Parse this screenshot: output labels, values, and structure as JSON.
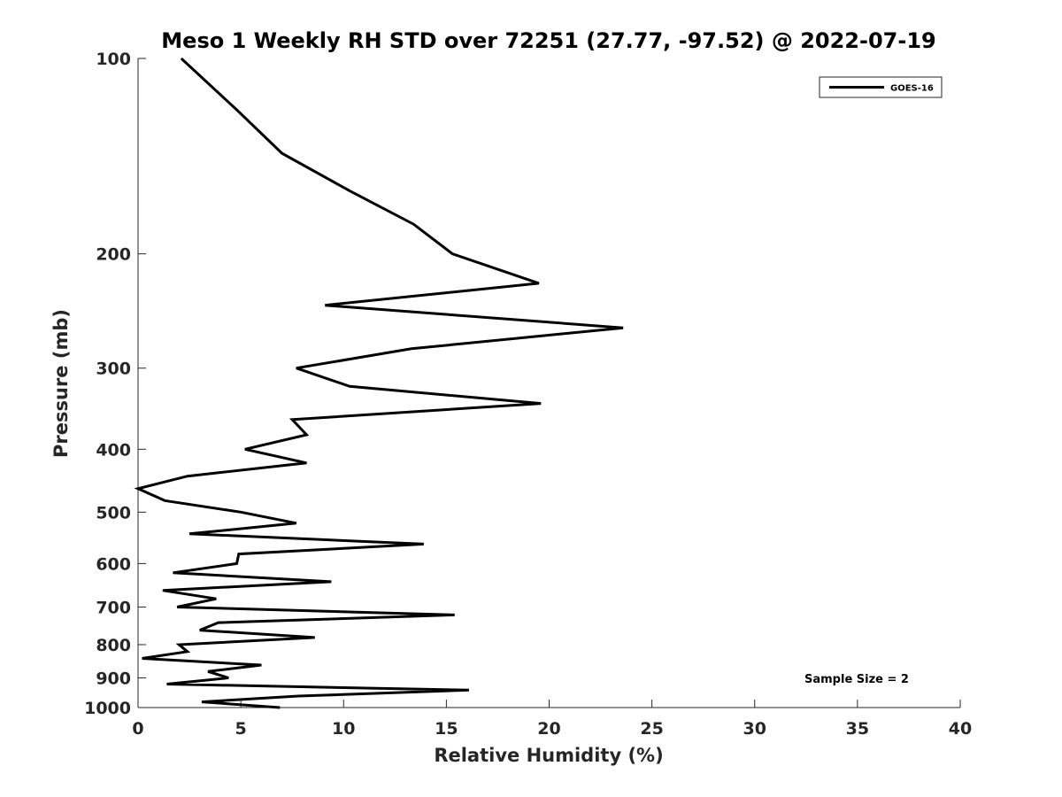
{
  "chart_data": {
    "type": "line",
    "title": "Meso 1 Weekly RH STD over 72251 (27.77, -97.52) @ 2022-07-19",
    "xlabel": "Relative Humidity (%)",
    "ylabel": "Pressure (mb)",
    "xlim": [
      0,
      40
    ],
    "ylim": [
      100,
      1000
    ],
    "yscale": "log",
    "y_reversed": true,
    "grid": false,
    "legend_position": "top-right",
    "x_ticks": [
      0,
      5,
      10,
      15,
      20,
      25,
      30,
      35,
      40
    ],
    "x_tick_labels": [
      "0",
      "5",
      "10",
      "15",
      "20",
      "25",
      "30",
      "35",
      "40"
    ],
    "y_ticks": [
      100,
      200,
      300,
      400,
      500,
      600,
      700,
      800,
      900,
      1000
    ],
    "y_tick_labels": [
      "100",
      "200",
      "300",
      "400",
      "500",
      "600",
      "700",
      "800",
      "900",
      "1000"
    ],
    "annotation": "Sample Size = 2",
    "series": [
      {
        "name": "GOES-16",
        "color": "#000000",
        "points": [
          [
            2.1,
            100
          ],
          [
            4.8,
            120
          ],
          [
            7.0,
            140
          ],
          [
            10.3,
            160
          ],
          [
            13.4,
            180
          ],
          [
            15.3,
            200
          ],
          [
            19.5,
            222
          ],
          [
            9.1,
            240
          ],
          [
            23.6,
            260
          ],
          [
            13.3,
            280
          ],
          [
            7.7,
            300
          ],
          [
            10.3,
            320
          ],
          [
            19.6,
            340
          ],
          [
            7.5,
            360
          ],
          [
            8.2,
            380
          ],
          [
            5.2,
            400
          ],
          [
            8.2,
            420
          ],
          [
            2.4,
            440
          ],
          [
            0.0,
            460
          ],
          [
            1.3,
            480
          ],
          [
            5.0,
            500
          ],
          [
            7.7,
            520
          ],
          [
            2.5,
            540
          ],
          [
            13.9,
            560
          ],
          [
            4.9,
            580
          ],
          [
            4.8,
            600
          ],
          [
            1.7,
            620
          ],
          [
            9.4,
            640
          ],
          [
            1.2,
            660
          ],
          [
            3.8,
            680
          ],
          [
            1.9,
            700
          ],
          [
            15.4,
            720
          ],
          [
            3.9,
            740
          ],
          [
            3.0,
            760
          ],
          [
            8.6,
            780
          ],
          [
            2.0,
            800
          ],
          [
            2.4,
            820
          ],
          [
            0.2,
            840
          ],
          [
            6.0,
            860
          ],
          [
            3.4,
            880
          ],
          [
            4.4,
            900
          ],
          [
            1.4,
            920
          ],
          [
            16.1,
            940
          ],
          [
            7.8,
            960
          ],
          [
            3.1,
            980
          ],
          [
            6.9,
            1000
          ]
        ]
      }
    ]
  }
}
